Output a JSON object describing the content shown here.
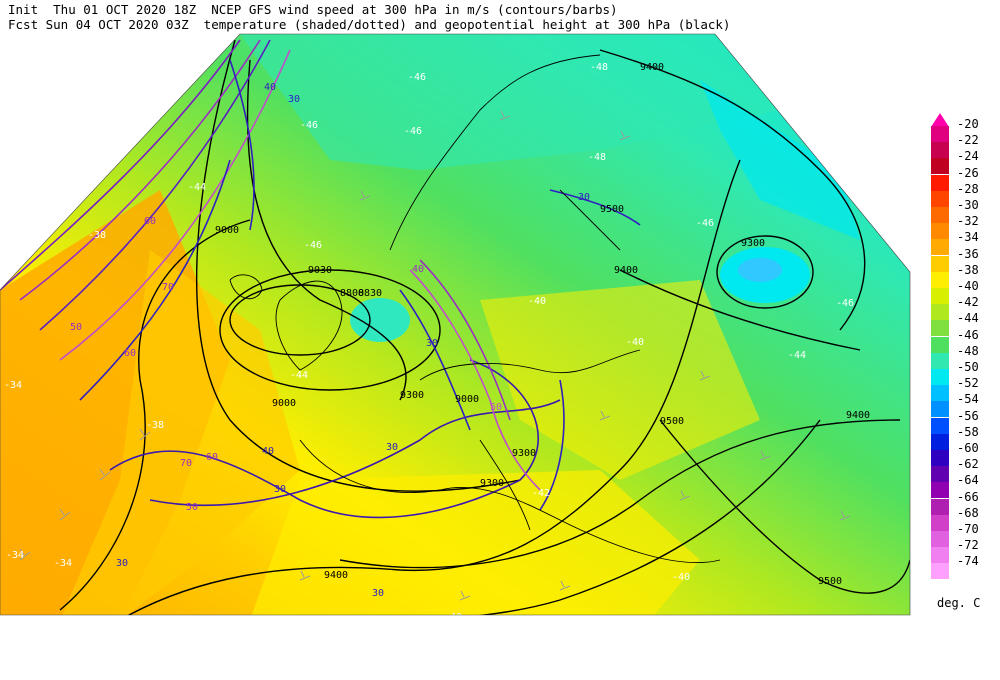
{
  "header": {
    "line1": "Init  Thu 01 OCT 2020 18Z  NCEP GFS wind speed at 300 hPa in m/s (contours/barbs)",
    "line2": "Fcst Sun 04 OCT 2020 03Z  temperature (shaded/dotted) and geopotential height at 300 hPa (black)"
  },
  "colorbar": {
    "units": "deg. C",
    "levels": [
      {
        "label": "-20",
        "color": "#e0007f"
      },
      {
        "label": "-22",
        "color": "#c80050"
      },
      {
        "label": "-24",
        "color": "#c00020"
      },
      {
        "label": "-26",
        "color": "#ff1a00"
      },
      {
        "label": "-28",
        "color": "#ff4400"
      },
      {
        "label": "-30",
        "color": "#ff6a00"
      },
      {
        "label": "-32",
        "color": "#ff8a00"
      },
      {
        "label": "-34",
        "color": "#ffaa00"
      },
      {
        "label": "-36",
        "color": "#ffcc00"
      },
      {
        "label": "-38",
        "color": "#ffee00"
      },
      {
        "label": "-40",
        "color": "#d8f000"
      },
      {
        "label": "-42",
        "color": "#b0e820"
      },
      {
        "label": "-44",
        "color": "#80e040"
      },
      {
        "label": "-46",
        "color": "#50e060"
      },
      {
        "label": "-48",
        "color": "#30e8b0"
      },
      {
        "label": "-50",
        "color": "#00e8f0"
      },
      {
        "label": "-52",
        "color": "#00c0ff"
      },
      {
        "label": "-54",
        "color": "#0090ff"
      },
      {
        "label": "-56",
        "color": "#0050ff"
      },
      {
        "label": "-58",
        "color": "#0020e0"
      },
      {
        "label": "-60",
        "color": "#3000c0"
      },
      {
        "label": "-62",
        "color": "#6000b0"
      },
      {
        "label": "-64",
        "color": "#9000b0"
      },
      {
        "label": "-66",
        "color": "#b020b0"
      },
      {
        "label": "-68",
        "color": "#d040c8"
      },
      {
        "label": "-70",
        "color": "#e060e0"
      },
      {
        "label": "-72",
        "color": "#f080f0"
      },
      {
        "label": "-74",
        "color": "#ffa0ff"
      }
    ]
  },
  "map": {
    "height_labels": [
      "9000",
      "9030",
      "8800",
      "8830",
      "9300",
      "9400",
      "9500",
      "9300",
      "9400",
      "9500",
      "9000",
      "9300",
      "9400",
      "9500",
      "9500",
      "9400",
      "9000",
      "9300"
    ],
    "temp_labels": [
      "-46",
      "-48",
      "-46",
      "-44",
      "-46",
      "-48",
      "-46",
      "-46",
      "-44",
      "-40",
      "-40",
      "-38",
      "-34",
      "-34",
      "-38",
      "-40",
      "-38",
      "-34",
      "-42",
      "-44",
      "-46",
      "-40"
    ],
    "wind_labels": [
      "40",
      "30",
      "60",
      "70",
      "50",
      "60",
      "70",
      "60",
      "50",
      "30",
      "30",
      "40",
      "50",
      "30",
      "30",
      "30",
      "40",
      "30"
    ]
  }
}
